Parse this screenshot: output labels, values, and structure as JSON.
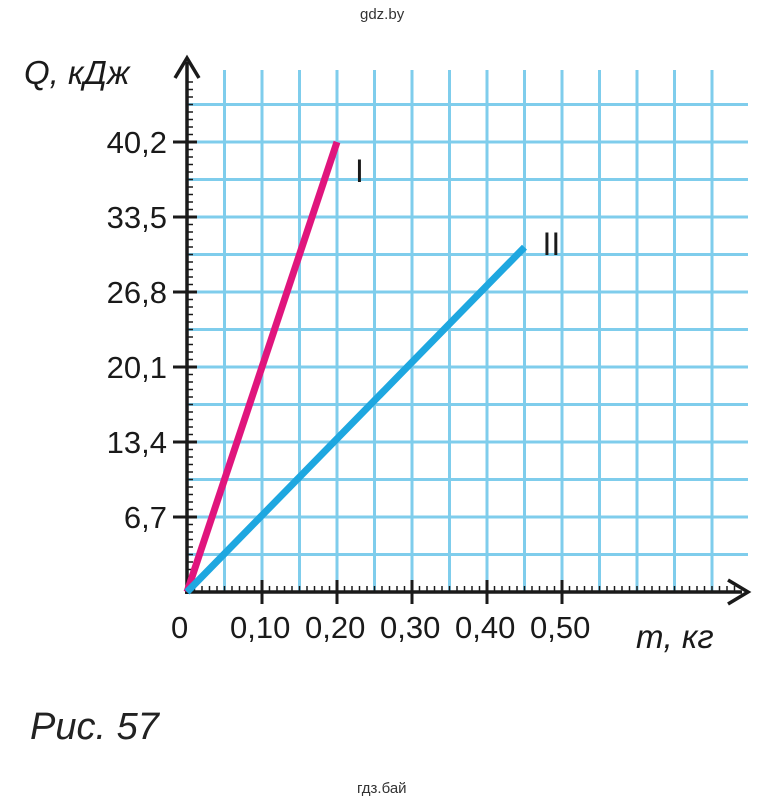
{
  "watermark_top": "gdz.by",
  "watermark_bottom": "гдз.бай",
  "caption": "Рис. 57",
  "chart_data": {
    "type": "line",
    "title": "",
    "ylabel": "Q, кДж",
    "xlabel": "m, кг",
    "origin_label": "0",
    "x_ticks": [
      0.1,
      0.2,
      0.3,
      0.4,
      0.5
    ],
    "x_tick_labels": [
      "0,10",
      "0,20",
      "0,30",
      "0,40",
      "0,50"
    ],
    "y_ticks": [
      6.7,
      13.4,
      20.1,
      26.8,
      33.5,
      40.2
    ],
    "y_tick_labels": [
      "6,7",
      "13,4",
      "20,1",
      "26,8",
      "33,5",
      "40,2"
    ],
    "xlim": [
      0,
      0.75
    ],
    "ylim": [
      0,
      46.9
    ],
    "grid": true,
    "series": [
      {
        "name": "I",
        "color": "#e0157d",
        "x": [
          0,
          0.2
        ],
        "y": [
          0,
          40.2
        ]
      },
      {
        "name": "II",
        "color": "#1ea7e0",
        "x": [
          0,
          0.45
        ],
        "y": [
          0,
          30.8
        ]
      }
    ],
    "colors": {
      "grid": "#7fcdec",
      "axis": "#1a1a1a"
    }
  }
}
